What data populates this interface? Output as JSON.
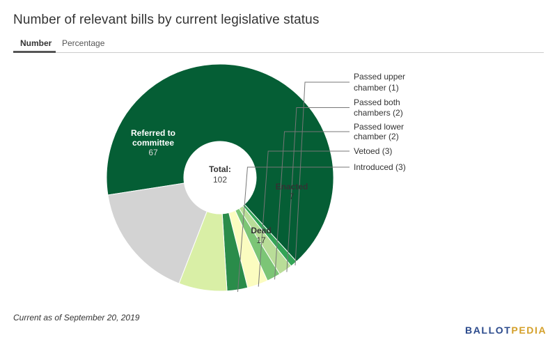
{
  "title": "Number of relevant bills by current legislative status",
  "tabs": {
    "active": "Number",
    "inactive": "Percentage"
  },
  "footnote": "Current as of September 20, 2019",
  "logo": {
    "part1": "BALLOT",
    "part2": "PEDIA"
  },
  "chart_data": {
    "type": "pie",
    "donut": true,
    "center_label": "Total:",
    "center_value": "102",
    "slices": [
      {
        "name": "Referred to committee",
        "value": 67,
        "color": "#055e35",
        "label_lines": [
          "Referred to",
          "committee"
        ],
        "label_color": "#ffffff",
        "value_color": "#d9d9d9",
        "label_mode": "inside"
      },
      {
        "name": "Passed upper chamber",
        "value": 1,
        "color": "#33a456",
        "label_lines": [
          "Passed upper",
          "chamber (1)"
        ],
        "label_mode": "outside"
      },
      {
        "name": "Passed both chambers",
        "value": 2,
        "color": "#b9dd98",
        "label_lines": [
          "Passed both",
          "chambers (2)"
        ],
        "label_mode": "outside"
      },
      {
        "name": "Passed lower chamber",
        "value": 2,
        "color": "#7cc576",
        "label_lines": [
          "Passed lower",
          "chamber (2)"
        ],
        "label_mode": "outside"
      },
      {
        "name": "Vetoed",
        "value": 3,
        "color": "#fbfcc0",
        "label_lines": [
          "Vetoed (3)"
        ],
        "label_mode": "outside"
      },
      {
        "name": "Introduced",
        "value": 3,
        "color": "#2a8c4a",
        "label_lines": [
          "Introduced (3)"
        ],
        "label_mode": "outside"
      },
      {
        "name": "Enacted",
        "value": 7,
        "color": "#d9efa6",
        "label_lines": [
          "Enacted"
        ],
        "label_color": "#333333",
        "value_color": "#333333",
        "label_mode": "inside"
      },
      {
        "name": "Dead",
        "value": 17,
        "color": "#d3d3d3",
        "label_lines": [
          "Dead"
        ],
        "label_color": "#333333",
        "value_color": "#333333",
        "label_mode": "inside"
      }
    ]
  }
}
